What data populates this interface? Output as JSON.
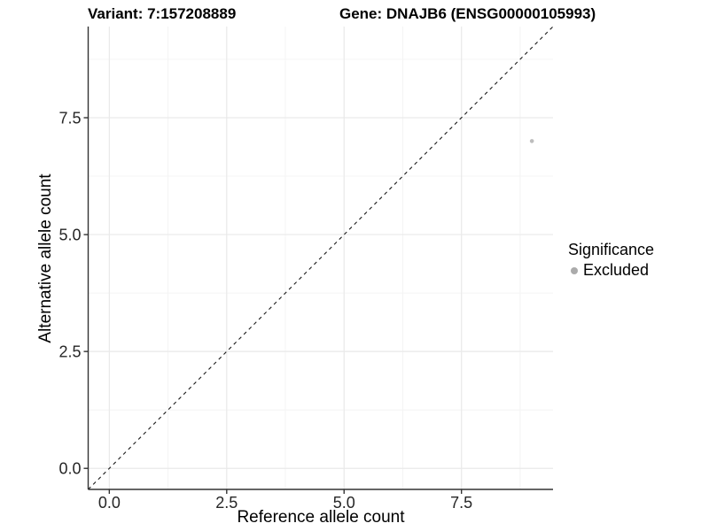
{
  "figure": {
    "background": "#ffffff"
  },
  "chart_data": {
    "type": "scatter",
    "titles": {
      "left": "Variant: 7:157208889",
      "right": "Gene: DNAJB6 (ENSG00000105993)"
    },
    "xlabel": "Reference allele count",
    "ylabel": "Alternative allele count",
    "x_axis": {
      "lim": [
        -0.45,
        9.45
      ],
      "ticks": [
        {
          "value": 0,
          "label": "0.0"
        },
        {
          "value": 2.5,
          "label": "2.5"
        },
        {
          "value": 5,
          "label": "5.0"
        },
        {
          "value": 7.5,
          "label": "7.5"
        }
      ],
      "minor": [
        1.25,
        3.75,
        6.25,
        8.75
      ]
    },
    "y_axis": {
      "lim": [
        -0.45,
        9.45
      ],
      "ticks": [
        {
          "value": 0,
          "label": "0.0"
        },
        {
          "value": 2.5,
          "label": "2.5"
        },
        {
          "value": 5,
          "label": "5.0"
        },
        {
          "value": 7.5,
          "label": "7.5"
        }
      ],
      "minor": [
        1.25,
        3.75,
        6.25,
        8.75
      ]
    },
    "series": [
      {
        "name": "Excluded",
        "color": "#bdbdbd",
        "point_radius": 2.3,
        "points": [
          {
            "x": 9,
            "y": 7
          }
        ]
      }
    ],
    "reference_line": {
      "type": "identity",
      "style": "dashed",
      "color": "#1a1a1a",
      "from": {
        "x": -0.45,
        "y": -0.45
      },
      "to": {
        "x": 9.45,
        "y": 9.45
      }
    },
    "grid": {
      "major_color": "#e9e9e9",
      "minor_color": "#f4f4f4",
      "grid_on": true
    },
    "axis_color": "#333333",
    "tick_label_color": "#262626",
    "legend": {
      "title": "Significance",
      "position": "right",
      "entries": [
        {
          "label": "Excluded",
          "color": "#ababab"
        }
      ]
    }
  }
}
